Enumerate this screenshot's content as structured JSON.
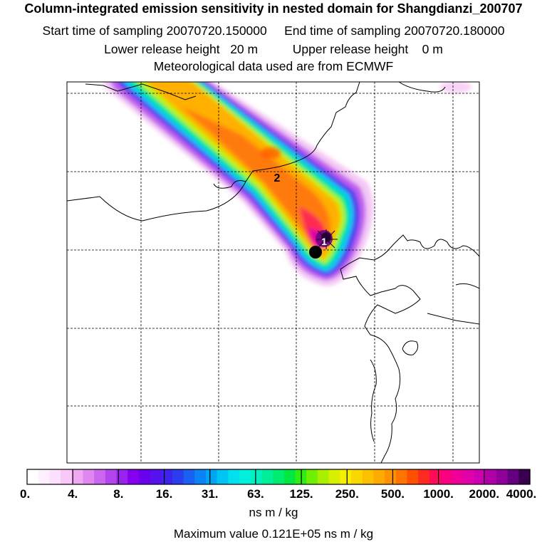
{
  "header": {
    "title": "Column-integrated emission sensitivity in nested domain for Shangdianzi_200707",
    "start_label": "Start time of sampling",
    "start_value": "20070720.150000",
    "end_label": "End time of sampling",
    "end_value": "20070720.180000",
    "lower_label": "Lower release height",
    "lower_value": "20 m",
    "upper_label": "Upper release height",
    "upper_value": "0 m",
    "met_text": "Meteorological data used are from ECMWF"
  },
  "map": {
    "labels": [
      "2",
      "1"
    ],
    "grid": true
  },
  "colorbar": {
    "tick_labels": [
      "0.",
      "4.",
      "8.",
      "16.",
      "31.",
      "63.",
      "125.",
      "250.",
      "500.",
      "1000.",
      "2000.",
      "4000."
    ],
    "colors": [
      "#ffffff",
      "#fff0ff",
      "#fde0fd",
      "#f8c8f8",
      "#f0a8f2",
      "#e088f0",
      "#cc66ee",
      "#b444ee",
      "#9922ee",
      "#8400ee",
      "#6a00ee",
      "#5511ee",
      "#3e22ee",
      "#2a3ef0",
      "#1a60f2",
      "#0a84f4",
      "#00a4f4",
      "#00c4f4",
      "#00e0ee",
      "#00f0dc",
      "#00f0c0",
      "#00ee98",
      "#00ec70",
      "#00e840",
      "#30ec10",
      "#70f000",
      "#a8f000",
      "#d8f000",
      "#f4f000",
      "#f8d800",
      "#fcc000",
      "#ffaa00",
      "#ff9200",
      "#ff7400",
      "#ff5000",
      "#ff2a20",
      "#ff0c58",
      "#f80080",
      "#ee0098",
      "#e200aa",
      "#cc00b0",
      "#b000a8",
      "#8e0098",
      "#640080",
      "#3a0050"
    ],
    "units": "ns m / kg"
  },
  "footer": {
    "max_label": "Maximum value",
    "max_value": "0.121E+05",
    "max_units": "ns m / kg"
  }
}
